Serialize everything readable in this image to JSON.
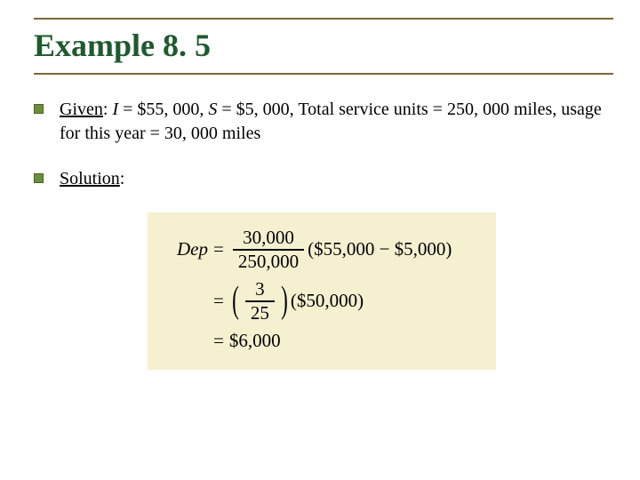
{
  "title": "Example 8. 5",
  "bullets": {
    "given": {
      "label": "Given",
      "text_prefix": ": ",
      "i_var": "I",
      "i_text": " = $55, 000, ",
      "s_var": "S",
      "s_text": " = $5, 000, Total service units = 250, 000 miles, usage for this year = 30, 000 miles"
    },
    "solution": {
      "label": "Solution",
      "text": ":"
    }
  },
  "equation": {
    "lhs": "Dep",
    "line1": {
      "frac_num": "30,000",
      "frac_den": "250,000",
      "rhs": "($55,000 − $5,000)"
    },
    "line2": {
      "frac_num": "3",
      "frac_den": "25",
      "rhs": "($50,000)"
    },
    "line3": {
      "value": "$6,000"
    }
  },
  "colors": {
    "title": "#1f5a2e",
    "rule": "#7a6a3a",
    "bullet_fill": "#6b8e3a",
    "bullet_border": "#4a6428",
    "equation_bg": "#f5f0d0",
    "background": "#ffffff"
  }
}
